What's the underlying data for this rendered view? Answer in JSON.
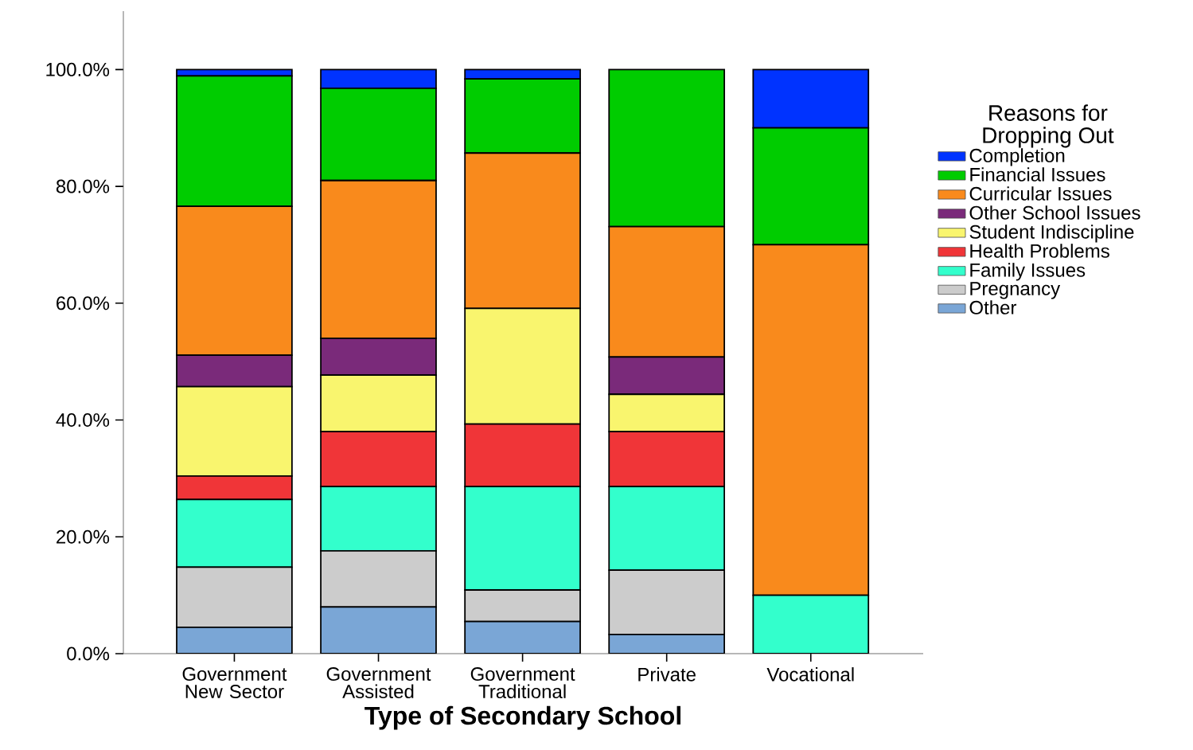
{
  "chart_data": {
    "type": "bar",
    "stacked": true,
    "xlabel": "Type of Secondary School",
    "legend_title": "Reasons for Dropping Out",
    "legend": "right",
    "categories": [
      "Government New Sector",
      "Government Assisted",
      "Government Traditional",
      "Private",
      "Vocational"
    ],
    "ylim": [
      0,
      110
    ],
    "yticks": [
      {
        "value": 0,
        "label": "0.0%"
      },
      {
        "value": 20,
        "label": "20.0%"
      },
      {
        "value": 40,
        "label": "40.0%"
      },
      {
        "value": 60,
        "label": "60.0%"
      },
      {
        "value": 80,
        "label": "80.0%"
      },
      {
        "value": 100,
        "label": "100.0%"
      }
    ],
    "series": [
      {
        "name": "Other",
        "color": "#7aa6d6",
        "values": [
          4.5,
          8.0,
          5.5,
          3.3,
          null
        ]
      },
      {
        "name": "Pregnancy",
        "color": "#cccccc",
        "values": [
          10.3,
          9.6,
          5.4,
          11.0,
          null
        ]
      },
      {
        "name": "Family Issues",
        "color": "#33ffcc",
        "values": [
          11.6,
          11.0,
          17.7,
          14.3,
          10.0
        ]
      },
      {
        "name": "Health Problems",
        "color": "#f03538",
        "values": [
          4.0,
          9.4,
          10.7,
          9.4,
          null
        ]
      },
      {
        "name": "Student Indiscipline",
        "color": "#f9f56e",
        "values": [
          15.3,
          9.7,
          19.8,
          6.4,
          null
        ]
      },
      {
        "name": "Other School Issues",
        "color": "#7a2a7a",
        "values": [
          5.4,
          6.3,
          null,
          6.4,
          null
        ]
      },
      {
        "name": "Curricular Issues",
        "color": "#f98a1c",
        "values": [
          25.5,
          27.0,
          26.6,
          22.3,
          60.0
        ]
      },
      {
        "name": "Financial Issues",
        "color": "#00cc00",
        "values": [
          22.3,
          15.8,
          12.7,
          26.9,
          20.0
        ]
      },
      {
        "name": "Completion",
        "color": "#0033ff",
        "values": [
          1.1,
          3.2,
          1.6,
          null,
          10.0
        ]
      }
    ]
  }
}
